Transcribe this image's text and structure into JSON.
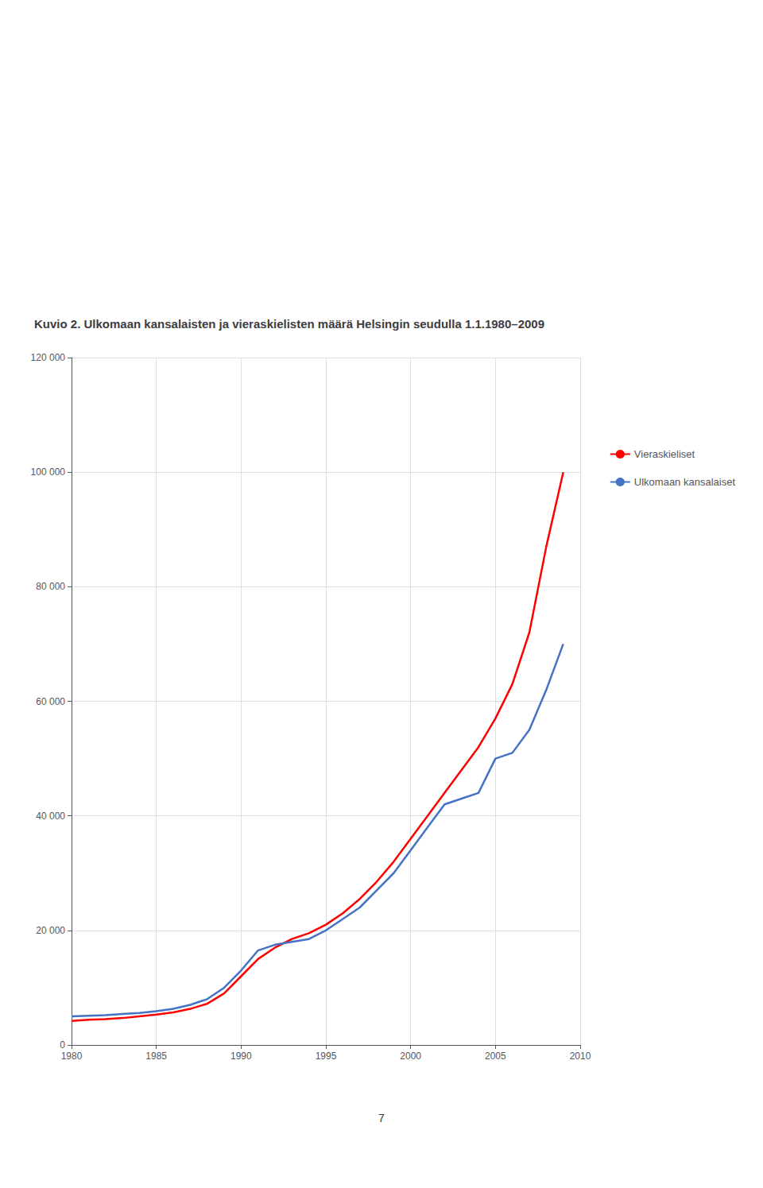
{
  "chart_data": {
    "type": "line",
    "title": "Kuvio 2. Ulkomaan kansalaisten ja vieraskielisten määrä Helsingin seudulla 1.1.1980–2009",
    "annotations": [
      "7"
    ],
    "x": [
      1980,
      1981,
      1982,
      1983,
      1984,
      1985,
      1986,
      1987,
      1988,
      1989,
      1990,
      1991,
      1992,
      1993,
      1994,
      1995,
      1996,
      1997,
      1998,
      1999,
      2000,
      2001,
      2002,
      2003,
      2004,
      2005,
      2006,
      2007,
      2008,
      2009
    ],
    "series": [
      {
        "name": "Vieraskieliset",
        "color": "#FF0000",
        "values": [
          4200,
          4400,
          4500,
          4700,
          5000,
          5300,
          5700,
          6300,
          7200,
          9000,
          12000,
          15000,
          17000,
          18500,
          19500,
          21000,
          23000,
          25500,
          28500,
          32000,
          36000,
          40000,
          44000,
          48000,
          52000,
          57000,
          63000,
          72000,
          87000,
          100000
        ]
      },
      {
        "name": "Ulkomaan kansalaiset",
        "color": "#4472C4",
        "values": [
          5000,
          5100,
          5200,
          5400,
          5600,
          5900,
          6300,
          7000,
          8000,
          10000,
          13000,
          16500,
          17500,
          18000,
          18500,
          20000,
          22000,
          24000,
          27000,
          30000,
          34000,
          38000,
          42000,
          43000,
          44000,
          50000,
          51000,
          55000,
          62000,
          70000
        ]
      }
    ],
    "xlim": [
      1980,
      2010
    ],
    "xticks": [
      1980,
      1985,
      1990,
      1995,
      2000,
      2005,
      2010
    ],
    "ylim": [
      0,
      120000
    ],
    "yticks": [
      0,
      {
        "value": 20000,
        "label": "20 000"
      },
      {
        "value": 40000,
        "label": "40 000"
      },
      {
        "value": 60000,
        "label": "60 000"
      },
      {
        "value": 80000,
        "label": "80 000"
      },
      {
        "value": 100000,
        "label": "100 000"
      },
      {
        "value": 120000,
        "label": "120 000"
      }
    ],
    "grid": true,
    "legend": "right"
  }
}
